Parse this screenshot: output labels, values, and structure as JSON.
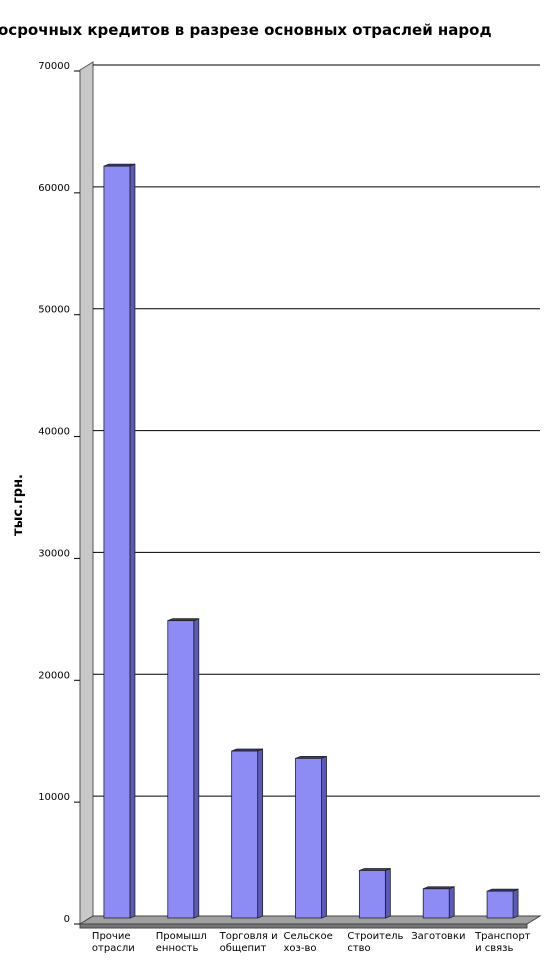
{
  "chart_data": {
    "type": "bar",
    "title": "осрочных кредитов в разрезе основных отраслей народ",
    "y_label": "тыс.грн.",
    "categories": [
      [
        "Прочие",
        "отрасли"
      ],
      [
        "Промышл",
        "енность"
      ],
      [
        "Торговля и",
        "общепит"
      ],
      [
        "Сельское",
        "хоз-во"
      ],
      [
        "Строитель",
        "ство"
      ],
      [
        "Заготовки"
      ],
      [
        "Транспорт",
        "и связь"
      ]
    ],
    "values": [
      61700,
      24400,
      13700,
      13100,
      3900,
      2400,
      2200
    ],
    "color": "#8c8cf4",
    "ylim": [
      0,
      70000
    ],
    "yticks": [
      0,
      10000,
      20000,
      30000,
      40000,
      50000,
      60000,
      70000
    ],
    "grid": true
  }
}
